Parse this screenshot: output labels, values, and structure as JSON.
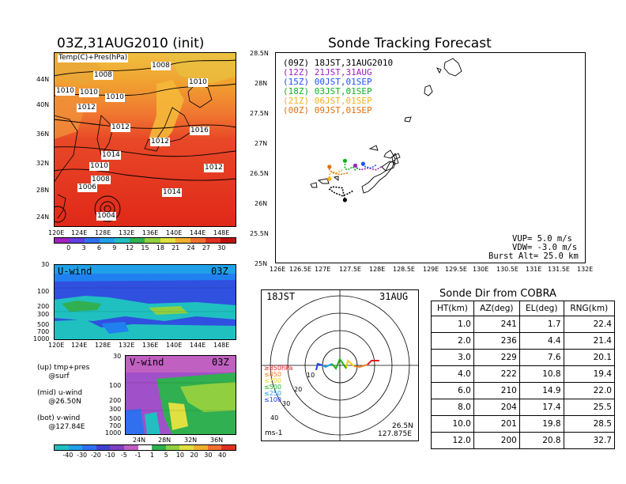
{
  "left": {
    "title": "03Z,31AUG2010 (init)",
    "map_label": "Temp(C)+Pres(hPa)",
    "lat_ticks": [
      "44N",
      "40N",
      "36N",
      "32N",
      "28N",
      "24N"
    ],
    "lon_ticks": [
      "120E",
      "124E",
      "128E",
      "132E",
      "136E",
      "140E",
      "144E",
      "148E"
    ],
    "isobar_labels": [
      "1008",
      "1008",
      "1010",
      "1010",
      "1010",
      "1010",
      "1012",
      "1012",
      "1016",
      "1012",
      "1014",
      "1012",
      "1010",
      "1008",
      "1006",
      "1014",
      "1012",
      "1004"
    ],
    "cbar1_labels": [
      "0",
      "3",
      "6",
      "9",
      "12",
      "15",
      "18",
      "21",
      "24",
      "27",
      "30"
    ],
    "uwind": {
      "label": "U-wind",
      "time": "03Z",
      "p_ticks": [
        "30",
        "100",
        "200",
        "300",
        "500",
        "700",
        "1000"
      ],
      "lon_ticks": [
        "120E",
        "124E",
        "128E",
        "132E",
        "136E",
        "140E",
        "144E",
        "148E"
      ]
    },
    "vwind": {
      "label": "V-wind",
      "time": "03Z",
      "p_ticks": [
        "30",
        "100",
        "200",
        "300",
        "500",
        "700",
        "1000"
      ],
      "lat_ticks": [
        "24N",
        "28N",
        "32N",
        "36N"
      ]
    },
    "notes": [
      "(up) tmp+pres\n     @surf",
      "(mid) u-wind\n     @26.50N",
      "(bot) v-wind\n     @127.84E"
    ],
    "cbar2_labels": [
      "-40",
      "-30",
      "-20",
      "-10",
      "-5",
      "-1",
      "1",
      "5",
      "10",
      "20",
      "30",
      "40"
    ]
  },
  "track": {
    "title": "Sonde Tracking Forecast",
    "lat_ticks": [
      "28.5N",
      "28N",
      "27.5N",
      "27N",
      "26.5N",
      "26N",
      "25.5N",
      "25N"
    ],
    "lon_ticks": [
      "126E",
      "126.5E",
      "127E",
      "127.5E",
      "128E",
      "128.5E",
      "129E",
      "129.5E",
      "130E",
      "130.5E",
      "131E",
      "131.5E",
      "132E"
    ],
    "legend": [
      {
        "text": "(09Z)  18JST,31AUG2010",
        "color": "#000000"
      },
      {
        "text": "(12Z)  21JST,31AUG",
        "color": "#a020c0"
      },
      {
        "text": "(15Z)  00JST,01SEP",
        "color": "#2050ff"
      },
      {
        "text": "(18Z)  03JST,01SEP",
        "color": "#10b020"
      },
      {
        "text": "(21Z)  06JST,01SEP",
        "color": "#f0b020"
      },
      {
        "text": "(00Z)  09JST,01SEP",
        "color": "#e07010"
      }
    ],
    "params": [
      "VUP= 5.0 m/s",
      "VDW= -3.0 m/s",
      "Burst Alt= 25.0 km"
    ]
  },
  "polar": {
    "time_left": "18JST",
    "time_right": "31AUG",
    "rings": [
      "10",
      "20",
      "30",
      "40"
    ],
    "pressure_legend": [
      {
        "text": "≥850hPa",
        "color": "#e02020"
      },
      {
        "text": "≤850",
        "color": "#f08020"
      },
      {
        "text": "≤700",
        "color": "#f0d020"
      },
      {
        "text": "≤500",
        "color": "#20b020"
      },
      {
        "text": "≤250",
        "color": "#20a0e0"
      },
      {
        "text": "≤100",
        "color": "#2040f0"
      }
    ],
    "units": "ms-1",
    "location": [
      "26.5N",
      "127.875E"
    ]
  },
  "sonde_table": {
    "title": "Sonde Dir from COBRA",
    "headers": [
      "HT(km)",
      "AZ(deg)",
      "EL(deg)",
      "RNG(km)"
    ],
    "rows": [
      [
        "1.0",
        "241",
        "1.7",
        "22.4"
      ],
      [
        "2.0",
        "236",
        "4.4",
        "21.4"
      ],
      [
        "3.0",
        "229",
        "7.6",
        "20.1"
      ],
      [
        "4.0",
        "222",
        "10.8",
        "19.4"
      ],
      [
        "6.0",
        "210",
        "14.9",
        "22.0"
      ],
      [
        "8.0",
        "204",
        "17.4",
        "25.5"
      ],
      [
        "10.0",
        "201",
        "19.8",
        "28.5"
      ],
      [
        "12.0",
        "200",
        "20.8",
        "32.7"
      ]
    ]
  },
  "chart_data": [
    {
      "type": "heatmap",
      "title": "03Z,31AUG2010 (init)",
      "label": "Temp(C)+Pres(hPa)",
      "lat_range": [
        "22N",
        "47N"
      ],
      "lon_range": [
        "120E",
        "150E"
      ],
      "colorbar": [
        0,
        3,
        6,
        9,
        12,
        15,
        18,
        21,
        24,
        27,
        30
      ]
    },
    {
      "type": "heatmap",
      "label": "U-wind",
      "time": "03Z",
      "y": "pressure (hPa)",
      "yrange": [
        1000,
        30
      ],
      "colorbar": [
        -40,
        -30,
        -20,
        -10,
        -5,
        -1,
        1,
        5,
        10,
        20,
        30,
        40
      ]
    },
    {
      "type": "heatmap",
      "label": "V-wind",
      "time": "03Z",
      "y": "pressure (hPa)",
      "yrange": [
        1000,
        30
      ]
    },
    {
      "type": "line",
      "title": "Sonde Tracking Forecast",
      "xlim": [
        126,
        132
      ],
      "ylim": [
        25,
        28.5
      ],
      "series": [
        {
          "name": "(09Z) 18JST,31AUG2010",
          "color": "#000000",
          "points": [
            [
              127.5,
              26.2
            ],
            [
              127.4,
              26.15
            ],
            [
              127.3,
              26.12
            ],
            [
              127.15,
              26.17
            ],
            [
              127.05,
              26.23
            ],
            [
              127.1,
              26.27
            ],
            [
              127.3,
              26.25
            ],
            [
              127.35,
              26.05
            ]
          ]
        },
        {
          "name": "(12Z) 21JST,31AUG",
          "color": "#a020c0",
          "points": [
            [
              128.05,
              26.6
            ],
            [
              127.95,
              26.55
            ],
            [
              127.8,
              26.58
            ],
            [
              127.65,
              26.55
            ],
            [
              127.55,
              26.6
            ],
            [
              127.55,
              26.62
            ]
          ]
        },
        {
          "name": "(15Z) 00JST,01SEP",
          "color": "#2050ff",
          "points": [
            [
              127.95,
              26.63
            ],
            [
              127.85,
              26.58
            ],
            [
              127.75,
              26.6
            ],
            [
              127.7,
              26.62
            ],
            [
              127.7,
              26.65
            ]
          ]
        },
        {
          "name": "(18Z) 03JST,01SEP",
          "color": "#10b020",
          "points": [
            [
              127.6,
              26.58
            ],
            [
              127.55,
              26.55
            ],
            [
              127.5,
              26.6
            ],
            [
              127.4,
              26.55
            ],
            [
              127.35,
              26.57
            ],
            [
              127.35,
              26.7
            ]
          ]
        },
        {
          "name": "(21Z) 06JST,01SEP",
          "color": "#f0b020",
          "points": [
            [
              127.3,
              26.55
            ],
            [
              127.2,
              26.5
            ],
            [
              127.1,
              26.52
            ],
            [
              127.05,
              26.47
            ],
            [
              127.05,
              26.4
            ]
          ]
        },
        {
          "name": "(00Z) 09JST,01SEP",
          "color": "#e07010",
          "points": [
            [
              127.4,
              26.5
            ],
            [
              127.25,
              26.47
            ],
            [
              127.12,
              26.5
            ],
            [
              127.05,
              26.55
            ],
            [
              127.05,
              26.6
            ]
          ]
        }
      ]
    },
    {
      "type": "table",
      "title": "Sonde Dir from COBRA",
      "columns": [
        "HT(km)",
        "AZ(deg)",
        "EL(deg)",
        "RNG(km)"
      ],
      "rows": [
        [
          1.0,
          241,
          1.7,
          22.4
        ],
        [
          2.0,
          236,
          4.4,
          21.4
        ],
        [
          3.0,
          229,
          7.6,
          20.1
        ],
        [
          4.0,
          222,
          10.8,
          19.4
        ],
        [
          6.0,
          210,
          14.9,
          22.0
        ],
        [
          8.0,
          204,
          17.4,
          25.5
        ],
        [
          10.0,
          201,
          19.8,
          28.5
        ],
        [
          12.0,
          200,
          20.8,
          32.7
        ]
      ]
    }
  ]
}
